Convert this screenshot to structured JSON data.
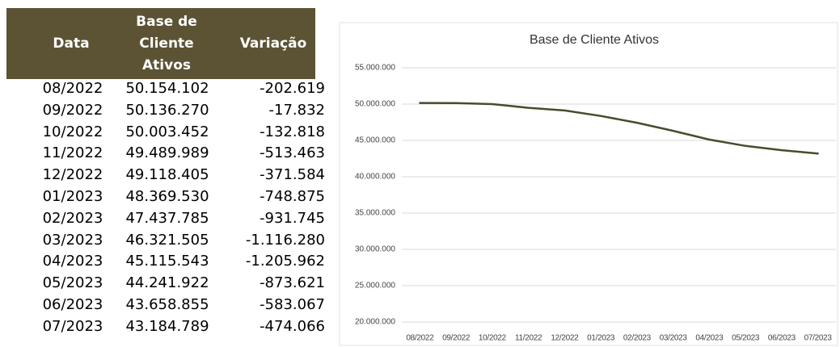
{
  "table": {
    "header": [
      "Data",
      "Base de Cliente Ativos",
      "Variação"
    ],
    "rows": [
      [
        "08/2022",
        "50.154.102",
        "-202.619"
      ],
      [
        "09/2022",
        "50.136.270",
        "-17.832"
      ],
      [
        "10/2022",
        "50.003.452",
        "-132.818"
      ],
      [
        "11/2022",
        "49.489.989",
        "-513.463"
      ],
      [
        "12/2022",
        "49.118.405",
        "-371.584"
      ],
      [
        "01/2023",
        "48.369.530",
        "-748.875"
      ],
      [
        "02/2023",
        "47.437.785",
        "-931.745"
      ],
      [
        "03/2023",
        "46.321.505",
        "-1.116.280"
      ],
      [
        "04/2023",
        "45.115.543",
        "-1.205.962"
      ],
      [
        "05/2023",
        "44.241.922",
        "-873.621"
      ],
      [
        "06/2023",
        "43.658.855",
        "-583.067"
      ],
      [
        "07/2023",
        "43.184.789",
        "-474.066"
      ]
    ]
  },
  "chart_data": {
    "type": "line",
    "title": "Base de Cliente Ativos",
    "categories": [
      "08/2022",
      "09/2022",
      "10/2022",
      "11/2022",
      "12/2022",
      "01/2023",
      "02/2023",
      "03/2023",
      "04/2023",
      "05/2023",
      "06/2023",
      "07/2023"
    ],
    "values": [
      50154102,
      50136270,
      50003452,
      49489989,
      49118405,
      48369530,
      47437785,
      46321505,
      45115543,
      44241922,
      43658855,
      43184789
    ],
    "color": "#4b4a2c",
    "ylim": [
      20000000,
      55000000
    ],
    "yticks": [
      {
        "value": 20000000,
        "label": "20.000.000"
      },
      {
        "value": 25000000,
        "label": "25.000.000"
      },
      {
        "value": 30000000,
        "label": "30.000.000"
      },
      {
        "value": 35000000,
        "label": "35.000.000"
      },
      {
        "value": 40000000,
        "label": "40.000.000"
      },
      {
        "value": 45000000,
        "label": "45.000.000"
      },
      {
        "value": 50000000,
        "label": "50.000.000"
      },
      {
        "value": 55000000,
        "label": "55.000.000"
      }
    ],
    "grid": true
  }
}
